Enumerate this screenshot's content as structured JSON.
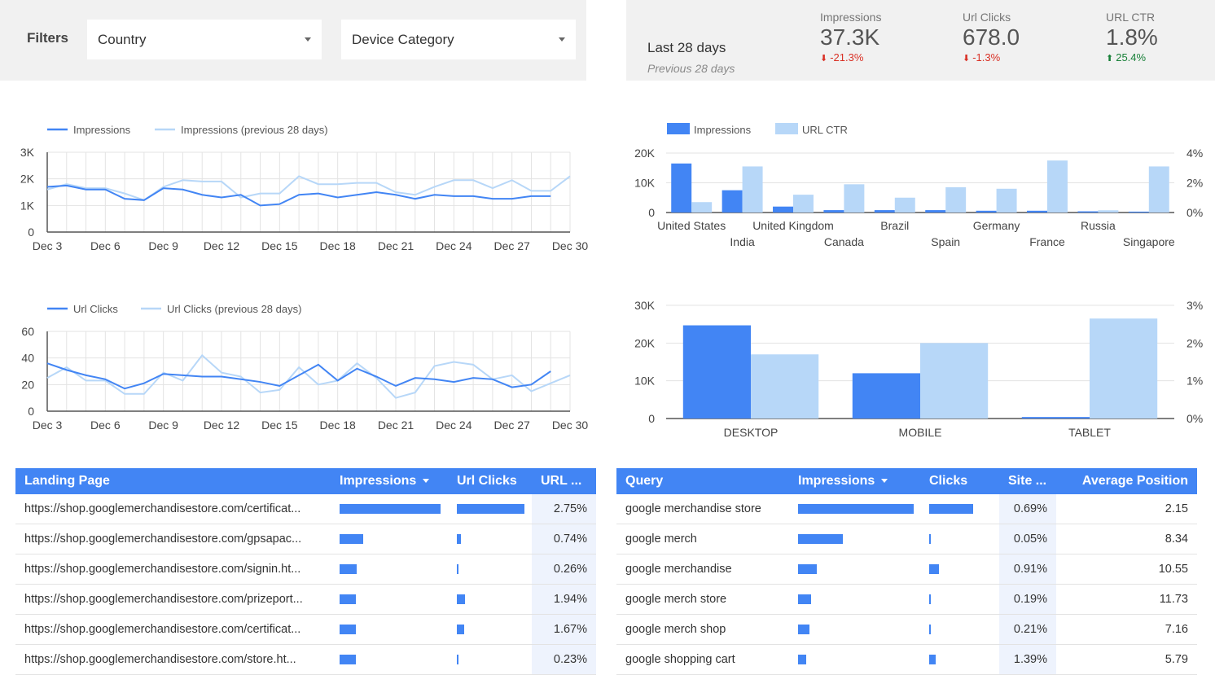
{
  "filters": {
    "label": "Filters",
    "country": "Country",
    "device": "Device Category"
  },
  "scorecard": {
    "period": "Last 28 days",
    "previous": "Previous 28 days",
    "metrics": [
      {
        "name": "Impressions",
        "value": "37.3K",
        "delta": "-21.3%",
        "dir": "down"
      },
      {
        "name": "Url Clicks",
        "value": "678.0",
        "delta": "-1.3%",
        "dir": "down"
      },
      {
        "name": "URL CTR",
        "value": "1.8%",
        "delta": "25.4%",
        "dir": "up"
      }
    ]
  },
  "colors": {
    "primary": "#4285f4",
    "secondary": "#b7d7f8",
    "negative": "#d93025",
    "positive": "#188038"
  },
  "chart_data": [
    {
      "type": "line",
      "id": "impressions-trend",
      "series": [
        {
          "name": "Impressions",
          "values": [
            1700,
            1750,
            1600,
            1600,
            1250,
            1200,
            1650,
            1600,
            1400,
            1300,
            1400,
            1000,
            1050,
            1400,
            1450,
            1300,
            1400,
            1500,
            1400,
            1250,
            1400,
            1350,
            1350,
            1250,
            1250,
            1350,
            1350
          ]
        },
        {
          "name": "Impressions (previous 28 days)",
          "values": [
            1600,
            1800,
            1650,
            1650,
            1450,
            1200,
            1700,
            1950,
            1900,
            1900,
            1300,
            1450,
            1450,
            2100,
            1800,
            1800,
            1850,
            1850,
            1500,
            1400,
            1700,
            1950,
            1950,
            1650,
            1950,
            1550,
            1550,
            2100
          ]
        }
      ],
      "ylim": [
        0,
        3000
      ],
      "yticks": [
        "0",
        "1K",
        "2K",
        "3K"
      ],
      "xticks": [
        "Dec 3",
        "Dec 6",
        "Dec 9",
        "Dec 12",
        "Dec 15",
        "Dec 18",
        "Dec 21",
        "Dec 24",
        "Dec 27",
        "Dec 30"
      ],
      "points": 28
    },
    {
      "type": "line",
      "id": "clicks-trend",
      "series": [
        {
          "name": "Url Clicks",
          "values": [
            36,
            31,
            27,
            24,
            17,
            21,
            28,
            27,
            26,
            26,
            24,
            22,
            19,
            27,
            35,
            23,
            32,
            26,
            19,
            25,
            24,
            22,
            25,
            24,
            18,
            20,
            30
          ]
        },
        {
          "name": "Url Clicks (previous 28 days)",
          "values": [
            25,
            33,
            23,
            23,
            13,
            13,
            29,
            23,
            42,
            29,
            26,
            14,
            16,
            33,
            20,
            23,
            36,
            25,
            10,
            14,
            34,
            37,
            35,
            24,
            27,
            15,
            21,
            27
          ]
        }
      ],
      "ylim": [
        0,
        60
      ],
      "yticks": [
        "0",
        "20",
        "40",
        "60"
      ],
      "xticks": [
        "Dec 3",
        "Dec 6",
        "Dec 9",
        "Dec 12",
        "Dec 15",
        "Dec 18",
        "Dec 21",
        "Dec 24",
        "Dec 27",
        "Dec 30"
      ],
      "points": 28
    },
    {
      "type": "bar",
      "id": "country-bars",
      "categories": [
        "United States",
        "India",
        "United Kingdom",
        "Canada",
        "Brazil",
        "Spain",
        "Germany",
        "France",
        "Russia",
        "Singapore"
      ],
      "series": [
        {
          "name": "Impressions",
          "axis": "left",
          "values": [
            16500,
            7500,
            2000,
            800,
            800,
            800,
            600,
            600,
            400,
            300
          ]
        },
        {
          "name": "URL CTR",
          "axis": "right",
          "values": [
            0.7,
            3.1,
            1.2,
            1.9,
            1.0,
            1.7,
            1.6,
            3.5,
            0.15,
            3.1
          ]
        }
      ],
      "yleft_ticks": [
        "0",
        "10K",
        "20K"
      ],
      "yleft_max": 20000,
      "yright_ticks": [
        "0%",
        "2%",
        "4%"
      ],
      "yright_max": 4
    },
    {
      "type": "bar",
      "id": "device-bars",
      "categories": [
        "DESKTOP",
        "MOBILE",
        "TABLET"
      ],
      "series": [
        {
          "name": "Impressions",
          "axis": "left",
          "values": [
            24700,
            12000,
            400
          ]
        },
        {
          "name": "URL CTR",
          "axis": "right",
          "values": [
            1.7,
            2.0,
            2.65
          ]
        }
      ],
      "yleft_ticks": [
        "0",
        "10K",
        "20K",
        "30K"
      ],
      "yleft_max": 30000,
      "yright_ticks": [
        "0%",
        "1%",
        "2%",
        "3%"
      ],
      "yright_max": 3
    }
  ],
  "landing_table": {
    "headers": [
      "Landing Page",
      "Impressions",
      "Url Clicks",
      "URL ..."
    ],
    "rows": [
      {
        "page": "https://shop.googlemerchandisestore.com/certificat...",
        "imp": 1.0,
        "clicks": 1.0,
        "ctr": "2.75%"
      },
      {
        "page": "https://shop.googlemerchandisestore.com/gpsapac...",
        "imp": 0.23,
        "clicks": 0.06,
        "ctr": "0.74%"
      },
      {
        "page": "https://shop.googlemerchandisestore.com/signin.ht...",
        "imp": 0.17,
        "clicks": 0.02,
        "ctr": "0.26%"
      },
      {
        "page": "https://shop.googlemerchandisestore.com/prizeport...",
        "imp": 0.16,
        "clicks": 0.12,
        "ctr": "1.94%"
      },
      {
        "page": "https://shop.googlemerchandisestore.com/certificat...",
        "imp": 0.16,
        "clicks": 0.11,
        "ctr": "1.67%"
      },
      {
        "page": "https://shop.googlemerchandisestore.com/store.ht...",
        "imp": 0.16,
        "clicks": 0.02,
        "ctr": "0.23%"
      }
    ]
  },
  "query_table": {
    "headers": [
      "Query",
      "Impressions",
      "Clicks",
      "Site ...",
      "Average Position"
    ],
    "rows": [
      {
        "q": "google merchandise store",
        "imp": 1.0,
        "clicks": 1.0,
        "ctr": "0.69%",
        "pos": "2.15"
      },
      {
        "q": "google merch",
        "imp": 0.39,
        "clicks": 0.04,
        "ctr": "0.05%",
        "pos": "8.34"
      },
      {
        "q": "google merchandise",
        "imp": 0.16,
        "clicks": 0.22,
        "ctr": "0.91%",
        "pos": "10.55"
      },
      {
        "q": "google merch store",
        "imp": 0.11,
        "clicks": 0.04,
        "ctr": "0.19%",
        "pos": "11.73"
      },
      {
        "q": "google merch shop",
        "imp": 0.1,
        "clicks": 0.04,
        "ctr": "0.21%",
        "pos": "7.16"
      },
      {
        "q": "google shopping cart",
        "imp": 0.07,
        "clicks": 0.15,
        "ctr": "1.39%",
        "pos": "5.79"
      }
    ]
  }
}
